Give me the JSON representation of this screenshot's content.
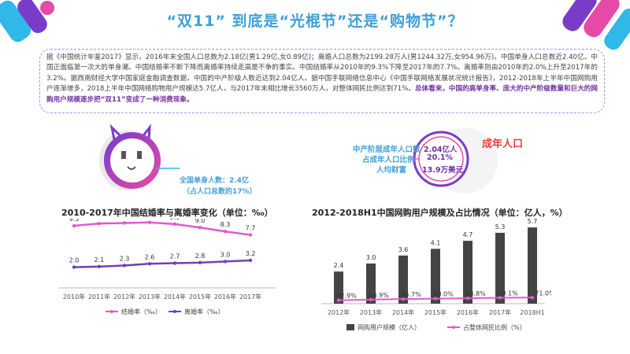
{
  "page": {
    "title": "“双11” 到底是“光棍节”还是“购物节”？",
    "paragraph": "据《中国统计年鉴2017》显示，2016年末全国人口总数为2.18亿(男1.29亿,女0.89亿)；离婚人口总数为2199.28万人(男1244.32万,女954.96万)。中国单身人口总数近2.40亿。中国正面临第一次大的单身潮。中国结婚率不断下降而离婚率持续走高是不争的事实。中国结婚率从2010年的9.3%下降至2017年的7.7%。离婚率则由2010年的2.0%上升至2017年的3.2%。据西南财经大学中国家庭金融调查数据，中国的中产阶级人数近达到2.04亿人。据中国手联网络信息中心《中国手联网络发展状况统计报告》，2012-2018年上半年中国网购用户逐渐增多，2018上半年中国网络购物用户规模达5.7亿人，与2017年末相比增长3560万人，对整体网民比例达到71%。",
    "highlight": "总体看来，中国的高单身率、庞大的中产阶级数量和巨大的网购用户规模逐步把“双11”变成了一种消费现象。"
  },
  "single_info": {
    "label1": "全国单身人数：2.4亿",
    "label2": "（占人口总数的17%）"
  },
  "middle_info": {
    "label_a": "中产阶层成年人口数",
    "label_b": "占成年人口比例",
    "label_c": "人均财富",
    "value_a": "2.04亿人",
    "value_b": "20.1%",
    "value_c": "13.9万美元",
    "side_label": "成年人口"
  },
  "colors": {
    "title": "#3f9fd8",
    "marriage": "#e05ad0",
    "divorce": "#7040b8",
    "bars": "#444444",
    "share_line": "#e05ad0",
    "accent_red": "#e8403a"
  },
  "chart_data": [
    {
      "type": "line",
      "title": "2010-2017年中国结婚率与离婚率变化（单位：‰）",
      "x": [
        "2010年",
        "2011年",
        "2012年",
        "2013年",
        "2014年",
        "2015年",
        "2016年",
        "2017年"
      ],
      "series": [
        {
          "name": "结婚率（‰）",
          "values": [
            9.3,
            9.7,
            9.8,
            9.9,
            9.6,
            9.0,
            8.3,
            7.7
          ]
        },
        {
          "name": "离婚率（‰）",
          "values": [
            2.0,
            2.1,
            2.3,
            2.6,
            2.7,
            2.8,
            3.0,
            3.2
          ]
        }
      ],
      "ylim": [
        0,
        11
      ],
      "legend": "bottom"
    },
    {
      "type": "bar",
      "title": "2012-2018H1中国网购用户规模及占比情况（单位：亿人，%）",
      "categories": [
        "2012年",
        "2013年",
        "2014年",
        "2015年",
        "2016年",
        "2017年",
        "2018H1"
      ],
      "series": [
        {
          "name": "网购用户规模（亿人）",
          "values": [
            2.4,
            3.0,
            3.6,
            4.1,
            4.7,
            5.3,
            5.7
          ]
        },
        {
          "name": "占整体网民比例（%）",
          "values": [
            42.9,
            48.9,
            55.7,
            60.0,
            63.8,
            69.1,
            71.0
          ],
          "value_labels": [
            "42.9%",
            "48.9%",
            "55.7%",
            "60.0%",
            "63.8%",
            "69.1%",
            "71.0%"
          ]
        }
      ],
      "ylim": [
        0,
        6.2
      ],
      "legend": "bottom"
    }
  ]
}
